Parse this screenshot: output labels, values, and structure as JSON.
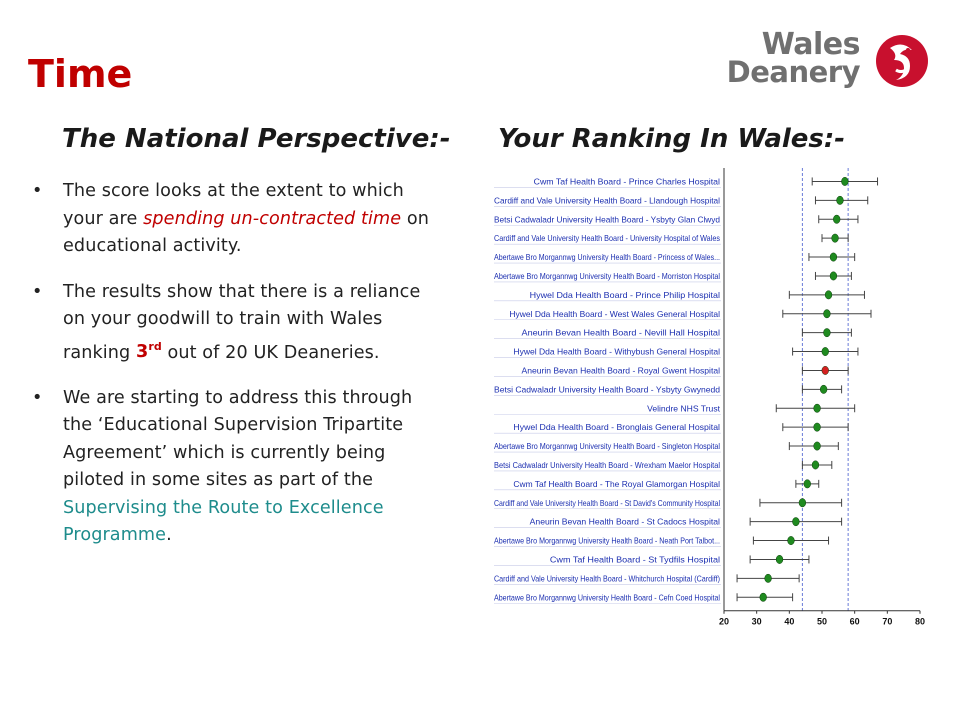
{
  "slide": {
    "title": "Time",
    "logo": {
      "line1": "Wales",
      "line2": "Deanery"
    },
    "left_heading": "The National Perspective:-",
    "right_heading": "Your Ranking In Wales:-"
  },
  "bullets": {
    "b1": {
      "t1": "The score looks at the extent to which your are ",
      "em": "spending un-contracted time",
      "t2": " on educational activity."
    },
    "b2": {
      "t1": "The results show that there is a reliance on your goodwill to train with Wales ranking ",
      "rank": "3",
      "rank_sup": "rd",
      "t2": " out of 20 UK Deaneries."
    },
    "b3": {
      "t1": "We are starting to address this through the ‘Educational Supervision Tripartite Agreement’ which is currently being piloted in some sites as part of the ",
      "link": "Supervising the Route to Excellence Programme",
      "t2": "."
    },
    "bullet_char": "•"
  },
  "chart_data": {
    "type": "scatter",
    "title": "",
    "xlabel": "",
    "ylabel": "",
    "xlim": [
      20,
      80
    ],
    "xticks": [
      20,
      30,
      40,
      50,
      60,
      70,
      80
    ],
    "reference_lines": [
      44,
      58
    ],
    "categories": [
      "Cwm Taf Health Board - Prince Charles Hospital",
      "Cardiff and Vale University Health Board - Llandough Hospital",
      "Betsi Cadwaladr University Health Board - Ysbyty Glan Clwyd",
      "Cardiff and Vale University Health Board - University Hospital of Wales",
      "Abertawe Bro Morgannwg University Health Board - Princess of Wales...",
      "Abertawe Bro Morgannwg University Health Board - Morriston Hospital",
      "Hywel Dda Health Board - Prince Philip Hospital",
      "Hywel Dda Health Board - West Wales General Hospital",
      "Aneurin Bevan Health Board - Nevill Hall Hospital",
      "Hywel Dda Health Board - Withybush General Hospital",
      "Aneurin Bevan Health Board - Royal Gwent Hospital",
      "Betsi Cadwaladr University Health Board - Ysbyty Gwynedd",
      "Velindre NHS Trust",
      "Hywel Dda Health Board - Bronglais General Hospital",
      "Abertawe Bro Morgannwg University Health Board - Singleton Hospital",
      "Betsi Cadwaladr University Health Board - Wrexham Maelor Hospital",
      "Cwm Taf Health Board - The Royal Glamorgan Hospital",
      "Cardiff and Vale University Health Board - St David's Community Hospital",
      "Aneurin Bevan Health Board - St Cadocs Hospital",
      "Abertawe Bro Morgannwg University Health Board - Neath Port Talbot...",
      "Cwm Taf Health Board - St Tydfils Hospital",
      "Cardiff and Vale University Health Board - Whitchurch Hospital (Cardiff)",
      "Abertawe Bro Morgannwg University Health Board - Cefn Coed Hospital"
    ],
    "values": [
      57,
      55.5,
      54.5,
      54,
      53.5,
      53.5,
      52,
      51.5,
      51.5,
      51,
      51,
      50.5,
      48.5,
      48.5,
      48.5,
      48,
      45.5,
      44,
      42,
      40.5,
      37,
      33.5,
      32
    ],
    "ci_low": [
      47,
      48,
      49,
      50,
      46,
      48,
      40,
      38,
      44,
      41,
      44,
      44,
      36,
      38,
      40,
      44,
      42,
      31,
      28,
      29,
      28,
      24,
      24
    ],
    "ci_high": [
      67,
      64,
      61,
      58,
      60,
      59,
      63,
      65,
      59,
      61,
      58,
      56,
      60,
      58,
      55,
      53,
      49,
      56,
      56,
      52,
      46,
      43,
      41
    ],
    "highlight_index": 10,
    "colors": {
      "point": "#1f8a1f",
      "highlight": "#d42020",
      "axis": "#333333",
      "reference": "#6a7bd8",
      "label": "#1c2fb0"
    }
  }
}
